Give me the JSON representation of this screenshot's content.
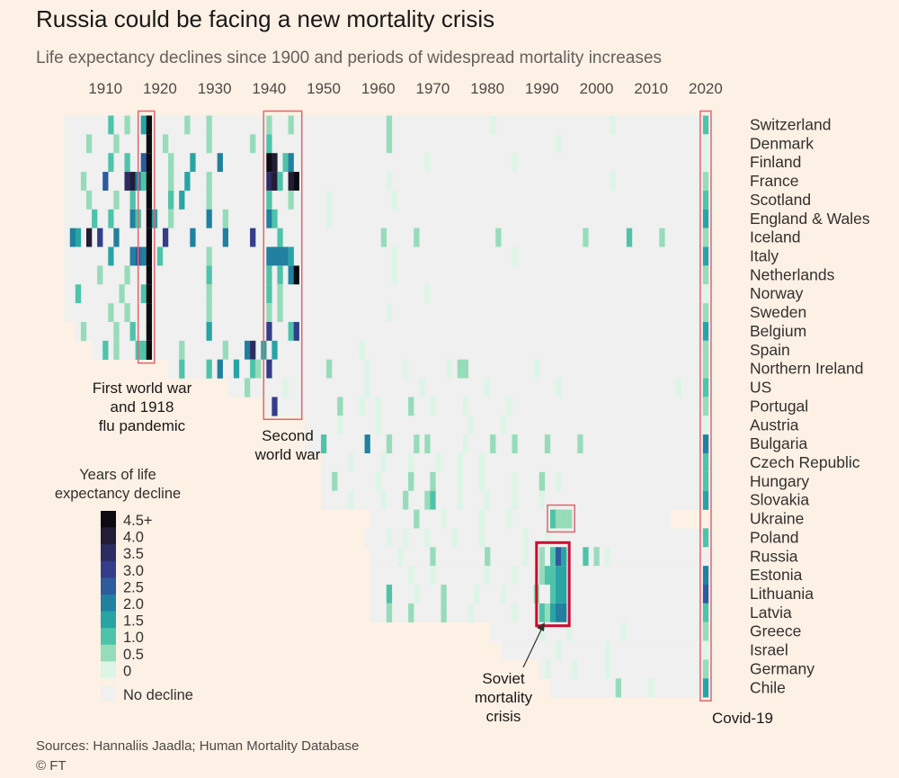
{
  "title": "Russia could be facing a new mortality crisis",
  "subtitle": "Life expectancy declines since 1900 and periods of widespread mortality increases",
  "source": "Sources: Hannaliis Jaadla; Human Mortality Database",
  "copyright": "© FT",
  "chart_data": {
    "type": "heatmap",
    "x_ticks": [
      1910,
      1920,
      1930,
      1940,
      1950,
      1960,
      1970,
      1980,
      1990,
      2000,
      2010,
      2020
    ],
    "x_range": [
      1900,
      2021
    ],
    "countries": [
      "Switzerland",
      "Denmark",
      "Finland",
      "France",
      "Scotland",
      "England & Wales",
      "Iceland",
      "Italy",
      "Netherlands",
      "Norway",
      "Sweden",
      "Belgium",
      "Spain",
      "Northern Ireland",
      "US",
      "Portugal",
      "Austria",
      "Bulgaria",
      "Czech Republic",
      "Hungary",
      "Slovakia",
      "Ukraine",
      "Poland",
      "Russia",
      "Estonia",
      "Lithuania",
      "Latvia",
      "Greece",
      "Israel",
      "Germany",
      "Chile"
    ],
    "series_start": [
      1903,
      1903,
      1903,
      1903,
      1903,
      1903,
      1903,
      1903,
      1903,
      1903,
      1903,
      1905,
      1908,
      1922,
      1933,
      1940,
      1947,
      1947,
      1950,
      1950,
      1950,
      1959,
      1958,
      1959,
      1959,
      1959,
      1959,
      1981,
      1983,
      1990,
      1992
    ],
    "series_end": [
      2021,
      2021,
      2021,
      2021,
      2021,
      2021,
      2021,
      2021,
      2021,
      2021,
      2021,
      2021,
      2021,
      2021,
      2021,
      2021,
      2021,
      2021,
      2021,
      2021,
      2021,
      2013,
      2021,
      2021,
      2021,
      2021,
      2021,
      2021,
      2021,
      2021,
      2021
    ],
    "declines": {
      "Switzerland": [
        [
          1911,
          1
        ],
        [
          1914,
          0.5
        ],
        [
          1917,
          1.5
        ],
        [
          1918,
          4.5
        ],
        [
          1925,
          0.5
        ],
        [
          1929,
          0.5
        ],
        [
          1940,
          0.5
        ],
        [
          1944,
          0.5
        ],
        [
          1962,
          0.5
        ],
        [
          1981,
          0.3
        ],
        [
          2003,
          0.3
        ],
        [
          2020,
          1
        ]
      ],
      "Denmark": [
        [
          1907,
          0.5
        ],
        [
          1912,
          0.5
        ],
        [
          1918,
          4.5
        ],
        [
          1921,
          0.5
        ],
        [
          1929,
          0.5
        ],
        [
          1937,
          0.5
        ],
        [
          1940,
          1
        ],
        [
          1962,
          0.5
        ],
        [
          1993,
          0.3
        ],
        [
          2020,
          0.3
        ]
      ],
      "Finland": [
        [
          1911,
          1
        ],
        [
          1914,
          1
        ],
        [
          1917,
          2.5
        ],
        [
          1918,
          4.5
        ],
        [
          1922,
          0.5
        ],
        [
          1926,
          1.5
        ],
        [
          1931,
          2
        ],
        [
          1940,
          4.5
        ],
        [
          1941,
          4
        ],
        [
          1943,
          1
        ],
        [
          1944,
          2
        ],
        [
          1969,
          0.3
        ],
        [
          1985,
          0.3
        ],
        [
          2020,
          0.3
        ]
      ],
      "France": [
        [
          1906,
          0.5
        ],
        [
          1910,
          2.5
        ],
        [
          1914,
          3.5
        ],
        [
          1915,
          4
        ],
        [
          1916,
          2
        ],
        [
          1917,
          1
        ],
        [
          1918,
          4.5
        ],
        [
          1922,
          0.5
        ],
        [
          1925,
          1.5
        ],
        [
          1929,
          0.5
        ],
        [
          1940,
          3.5
        ],
        [
          1941,
          4
        ],
        [
          1942,
          1
        ],
        [
          1944,
          4
        ],
        [
          1945,
          4.5
        ],
        [
          1962,
          0.3
        ],
        [
          2003,
          0.3
        ],
        [
          2020,
          0.5
        ]
      ],
      "Scotland": [
        [
          1907,
          0.5
        ],
        [
          1912,
          0.5
        ],
        [
          1915,
          1
        ],
        [
          1918,
          4.5
        ],
        [
          1922,
          1
        ],
        [
          1924,
          1.5
        ],
        [
          1929,
          0.5
        ],
        [
          1940,
          1
        ],
        [
          1944,
          0.5
        ],
        [
          1951,
          0.3
        ],
        [
          1963,
          0.3
        ],
        [
          2020,
          1
        ]
      ],
      "England & Wales": [
        [
          1908,
          1
        ],
        [
          1911,
          1
        ],
        [
          1915,
          2
        ],
        [
          1916,
          1
        ],
        [
          1918,
          4.5
        ],
        [
          1919,
          1.5
        ],
        [
          1922,
          0.5
        ],
        [
          1929,
          2
        ],
        [
          1932,
          0.5
        ],
        [
          1940,
          2
        ],
        [
          1941,
          1
        ],
        [
          1951,
          0.3
        ],
        [
          2020,
          1.5
        ]
      ],
      "Iceland": [
        [
          1904,
          2
        ],
        [
          1905,
          1.5
        ],
        [
          1907,
          4
        ],
        [
          1909,
          3
        ],
        [
          1912,
          2
        ],
        [
          1918,
          4.5
        ],
        [
          1921,
          3
        ],
        [
          1926,
          2
        ],
        [
          1932,
          2
        ],
        [
          1937,
          3
        ],
        [
          1942,
          1
        ],
        [
          1961,
          0.5
        ],
        [
          1967,
          0.5
        ],
        [
          1982,
          0.5
        ],
        [
          1998,
          0.5
        ],
        [
          2006,
          1
        ],
        [
          2012,
          0.5
        ],
        [
          2020,
          0.5
        ]
      ],
      "Italy": [
        [
          1911,
          1.5
        ],
        [
          1915,
          2
        ],
        [
          1916,
          2.5
        ],
        [
          1917,
          2
        ],
        [
          1918,
          4.5
        ],
        [
          1920,
          1
        ],
        [
          1929,
          0.5
        ],
        [
          1940,
          2
        ],
        [
          1941,
          2
        ],
        [
          1942,
          2
        ],
        [
          1943,
          2
        ],
        [
          1944,
          1.5
        ],
        [
          1963,
          0.3
        ],
        [
          1985,
          0.3
        ],
        [
          2020,
          1.5
        ]
      ],
      "Netherlands": [
        [
          1909,
          0.5
        ],
        [
          1914,
          0.5
        ],
        [
          1918,
          4.5
        ],
        [
          1929,
          1
        ],
        [
          1940,
          1
        ],
        [
          1942,
          1
        ],
        [
          1944,
          2
        ],
        [
          1945,
          4.5
        ],
        [
          1963,
          0.3
        ],
        [
          2020,
          0.5
        ]
      ],
      "Norway": [
        [
          1905,
          1
        ],
        [
          1913,
          0.5
        ],
        [
          1917,
          1
        ],
        [
          1918,
          4.5
        ],
        [
          1929,
          0.5
        ],
        [
          1940,
          1
        ],
        [
          1942,
          0.5
        ],
        [
          1969,
          0.3
        ],
        [
          2020,
          0.3
        ]
      ],
      "Sweden": [
        [
          1911,
          0.5
        ],
        [
          1914,
          0.5
        ],
        [
          1918,
          4.5
        ],
        [
          1929,
          0.5
        ],
        [
          1940,
          0.5
        ],
        [
          1942,
          0.5
        ],
        [
          1962,
          0.3
        ],
        [
          2020,
          0.5
        ]
      ],
      "Belgium": [
        [
          1906,
          0.5
        ],
        [
          1912,
          0.5
        ],
        [
          1915,
          1
        ],
        [
          1918,
          4.5
        ],
        [
          1929,
          1.5
        ],
        [
          1940,
          3
        ],
        [
          1944,
          1
        ],
        [
          1945,
          3
        ],
        [
          2020,
          1.5
        ]
      ],
      "Spain": [
        [
          1910,
          1
        ],
        [
          1912,
          0.5
        ],
        [
          1916,
          1
        ],
        [
          1917,
          1
        ],
        [
          1918,
          4.5
        ],
        [
          1924,
          0.5
        ],
        [
          1932,
          0.5
        ],
        [
          1936,
          2
        ],
        [
          1937,
          3.5
        ],
        [
          1939,
          1.5
        ],
        [
          1941,
          1.5
        ],
        [
          1957,
          0.3
        ],
        [
          2020,
          0.5
        ]
      ],
      "Northern Ireland": [
        [
          1924,
          1
        ],
        [
          1929,
          1
        ],
        [
          1931,
          2
        ],
        [
          1934,
          1.5
        ],
        [
          1937,
          1
        ],
        [
          1938,
          0.5
        ],
        [
          1940,
          3
        ],
        [
          1951,
          0.5
        ],
        [
          1958,
          0.3
        ],
        [
          1965,
          0.3
        ],
        [
          1973,
          0.3
        ],
        [
          1975,
          0.5
        ],
        [
          1976,
          0.5
        ],
        [
          1989,
          0.3
        ],
        [
          2020,
          0.5
        ]
      ],
      "US": [
        [
          1936,
          0.5
        ],
        [
          1943,
          0.3
        ],
        [
          1958,
          0.3
        ],
        [
          1968,
          0.3
        ],
        [
          1980,
          0.3
        ],
        [
          1993,
          0.3
        ],
        [
          2015,
          0.3
        ],
        [
          2020,
          1
        ]
      ],
      "Portugal": [
        [
          1941,
          3
        ],
        [
          1953,
          0.5
        ],
        [
          1957,
          0.3
        ],
        [
          1960,
          0.3
        ],
        [
          1966,
          0.5
        ],
        [
          1970,
          0.3
        ],
        [
          1976,
          0.3
        ],
        [
          1984,
          0.3
        ],
        [
          2020,
          0.5
        ]
      ],
      "Austria": [
        [
          1953,
          0.3
        ],
        [
          1960,
          0.3
        ],
        [
          1977,
          0.3
        ],
        [
          1983,
          0.3
        ],
        [
          2020,
          0.3
        ]
      ],
      "Bulgaria": [
        [
          1950,
          1
        ],
        [
          1958,
          2
        ],
        [
          1962,
          0.5
        ],
        [
          1967,
          0.5
        ],
        [
          1969,
          0.5
        ],
        [
          1976,
          0.3
        ],
        [
          1981,
          0.5
        ],
        [
          1985,
          0.5
        ],
        [
          1991,
          0.5
        ],
        [
          1997,
          0.5
        ],
        [
          2020,
          2
        ]
      ],
      "Czech Republic": [
        [
          1955,
          0.3
        ],
        [
          1961,
          0.3
        ],
        [
          1966,
          0.3
        ],
        [
          1971,
          0.3
        ],
        [
          1975,
          0.3
        ],
        [
          1979,
          0.3
        ],
        [
          2020,
          1
        ]
      ],
      "Hungary": [
        [
          1952,
          0.5
        ],
        [
          1960,
          0.3
        ],
        [
          1966,
          0.5
        ],
        [
          1970,
          0.5
        ],
        [
          1975,
          0.3
        ],
        [
          1979,
          0.3
        ],
        [
          1985,
          0.3
        ],
        [
          1990,
          0.5
        ],
        [
          1993,
          0.3
        ],
        [
          2020,
          1
        ]
      ],
      "Slovakia": [
        [
          1955,
          0.3
        ],
        [
          1961,
          0.3
        ],
        [
          1965,
          0.5
        ],
        [
          1969,
          0.5
        ],
        [
          1970,
          1
        ],
        [
          1975,
          0.3
        ],
        [
          1980,
          0.3
        ],
        [
          1985,
          0.3
        ],
        [
          1990,
          0.3
        ],
        [
          2020,
          1.5
        ]
      ],
      "Ukraine": [
        [
          1967,
          0.5
        ],
        [
          1972,
          0.3
        ],
        [
          1979,
          0.3
        ],
        [
          1984,
          0.3
        ],
        [
          1992,
          1
        ],
        [
          1993,
          0.5
        ],
        [
          1994,
          0.5
        ],
        [
          1995,
          0.5
        ]
      ],
      "Poland": [
        [
          1962,
          0.3
        ],
        [
          1965,
          0.3
        ],
        [
          1969,
          0.3
        ],
        [
          1974,
          0.3
        ],
        [
          1979,
          0.3
        ],
        [
          1987,
          0.3
        ],
        [
          1991,
          0.3
        ],
        [
          2020,
          1
        ]
      ],
      "Russia": [
        [
          1964,
          0.3
        ],
        [
          1970,
          0.5
        ],
        [
          1980,
          0.5
        ],
        [
          1987,
          0.3
        ],
        [
          1990,
          0.5
        ],
        [
          1992,
          1
        ],
        [
          1993,
          2.5
        ],
        [
          1994,
          1.5
        ],
        [
          1998,
          1
        ],
        [
          2000,
          0.5
        ],
        [
          2002,
          0.3
        ]
      ],
      "Estonia": [
        [
          1966,
          0.3
        ],
        [
          1970,
          0.3
        ],
        [
          1980,
          0.3
        ],
        [
          1985,
          0.3
        ],
        [
          1990,
          0.5
        ],
        [
          1991,
          1
        ],
        [
          1992,
          1
        ],
        [
          1993,
          1.5
        ],
        [
          1994,
          1.5
        ],
        [
          2020,
          2
        ]
      ],
      "Lithuania": [
        [
          1962,
          1
        ],
        [
          1967,
          0.3
        ],
        [
          1972,
          0.5
        ],
        [
          1978,
          0.3
        ],
        [
          1983,
          0.3
        ],
        [
          1989,
          0.5
        ],
        [
          1992,
          1
        ],
        [
          1993,
          1.5
        ],
        [
          1994,
          1.5
        ],
        [
          2020,
          2.5
        ]
      ],
      "Latvia": [
        [
          1962,
          0.5
        ],
        [
          1966,
          0.5
        ],
        [
          1972,
          0.5
        ],
        [
          1977,
          0.3
        ],
        [
          1985,
          0.3
        ],
        [
          1990,
          1
        ],
        [
          1991,
          0.5
        ],
        [
          1992,
          1.5
        ],
        [
          1993,
          2
        ],
        [
          1994,
          2
        ],
        [
          2020,
          1
        ]
      ],
      "Greece": [
        [
          1990,
          0.3
        ],
        [
          1995,
          0.3
        ],
        [
          2005,
          0.3
        ],
        [
          2020,
          0.5
        ]
      ],
      "Israel": [
        [
          1993,
          0.3
        ],
        [
          2002,
          0.3
        ],
        [
          2020,
          0.3
        ]
      ],
      "Germany": [
        [
          1991,
          0.3
        ],
        [
          1996,
          0.3
        ],
        [
          2002,
          0.3
        ],
        [
          2020,
          0.5
        ]
      ],
      "Chile": [
        [
          2004,
          0.5
        ],
        [
          2010,
          0.3
        ],
        [
          2020,
          1.5
        ]
      ]
    },
    "annotations": [
      {
        "id": "ww1",
        "label_lines": [
          "First world war",
          "and 1918",
          "flu pandemic"
        ],
        "year_start": 1917,
        "year_end": 1918,
        "row_start": 0,
        "row_end": 12
      },
      {
        "id": "ww2",
        "label_lines": [
          "Second",
          "world war"
        ],
        "year_start": 1940,
        "year_end": 1945,
        "row_start": 0,
        "row_end": 15
      },
      {
        "id": "soviet-ukraine",
        "label_lines": [],
        "year_start": 1992,
        "year_end": 1995,
        "row_start": 21,
        "row_end": 21
      },
      {
        "id": "soviet",
        "label_lines": [
          "Soviet",
          "mortality",
          "crisis"
        ],
        "year_start": 1990,
        "year_end": 1994,
        "row_start": 23,
        "row_end": 26
      },
      {
        "id": "covid",
        "label_lines": [
          "Covid-19"
        ],
        "year_start": 2020,
        "year_end": 2020,
        "row_start": 0,
        "row_end": 30
      }
    ],
    "legend": {
      "title_lines": [
        "Years of life",
        "expectancy decline"
      ],
      "labels": [
        "4.5+",
        "4.0",
        "3.5",
        "3.0",
        "2.5",
        "2.0",
        "1.5",
        "1.0",
        "0.5",
        "0"
      ],
      "colors": [
        "#0d0a12",
        "#221c35",
        "#2c2b62",
        "#333d8a",
        "#2e5a9e",
        "#21809f",
        "#29a4a5",
        "#4fc3aa",
        "#97dcba",
        "#ddf5e6"
      ],
      "no_decline_label": "No decline",
      "no_decline_color": "#eff0ef"
    }
  }
}
